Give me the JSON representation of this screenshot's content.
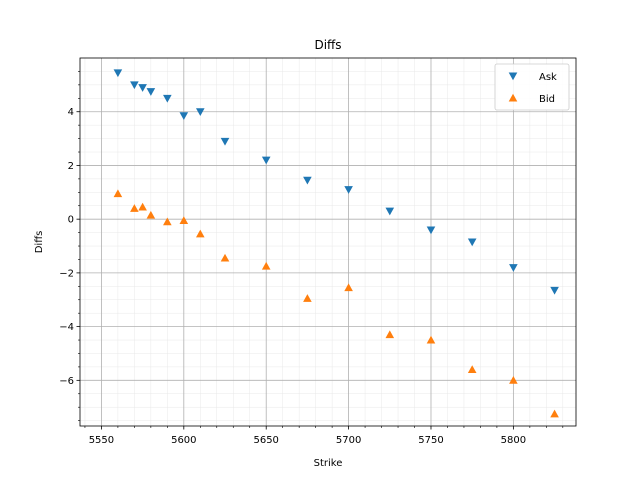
{
  "chart_data": {
    "type": "scatter",
    "title": "Diffs",
    "xlabel": "Strike",
    "ylabel": "Diffs",
    "xlim": [
      5537,
      5838
    ],
    "ylim": [
      -7.7,
      6.0
    ],
    "xticks": [
      5550,
      5600,
      5650,
      5700,
      5750,
      5800
    ],
    "yticks": [
      -6,
      -4,
      -2,
      0,
      2,
      4
    ],
    "grid": true,
    "minor_grid": true,
    "legend_position": "top-right",
    "series": [
      {
        "name": "Ask",
        "marker": "triangle-down",
        "color": "#1f77b4",
        "points": [
          [
            5560,
            5.45
          ],
          [
            5570,
            5.0
          ],
          [
            5575,
            4.9
          ],
          [
            5580,
            4.75
          ],
          [
            5590,
            4.5
          ],
          [
            5600,
            3.85
          ],
          [
            5610,
            4.0
          ],
          [
            5625,
            2.9
          ],
          [
            5650,
            2.2
          ],
          [
            5675,
            1.45
          ],
          [
            5700,
            1.1
          ],
          [
            5725,
            0.3
          ],
          [
            5750,
            -0.4
          ],
          [
            5775,
            -0.85
          ],
          [
            5800,
            -1.8
          ],
          [
            5825,
            -2.65
          ]
        ]
      },
      {
        "name": "Bid",
        "marker": "triangle-up",
        "color": "#ff7f0e",
        "points": [
          [
            5560,
            0.95
          ],
          [
            5570,
            0.4
          ],
          [
            5575,
            0.45
          ],
          [
            5580,
            0.15
          ],
          [
            5590,
            -0.1
          ],
          [
            5600,
            -0.05
          ],
          [
            5610,
            -0.55
          ],
          [
            5625,
            -1.45
          ],
          [
            5650,
            -1.75
          ],
          [
            5675,
            -2.95
          ],
          [
            5700,
            -2.55
          ],
          [
            5725,
            -4.3
          ],
          [
            5750,
            -4.5
          ],
          [
            5775,
            -5.6
          ],
          [
            5800,
            -6.0
          ],
          [
            5825,
            -7.25
          ]
        ]
      }
    ]
  }
}
